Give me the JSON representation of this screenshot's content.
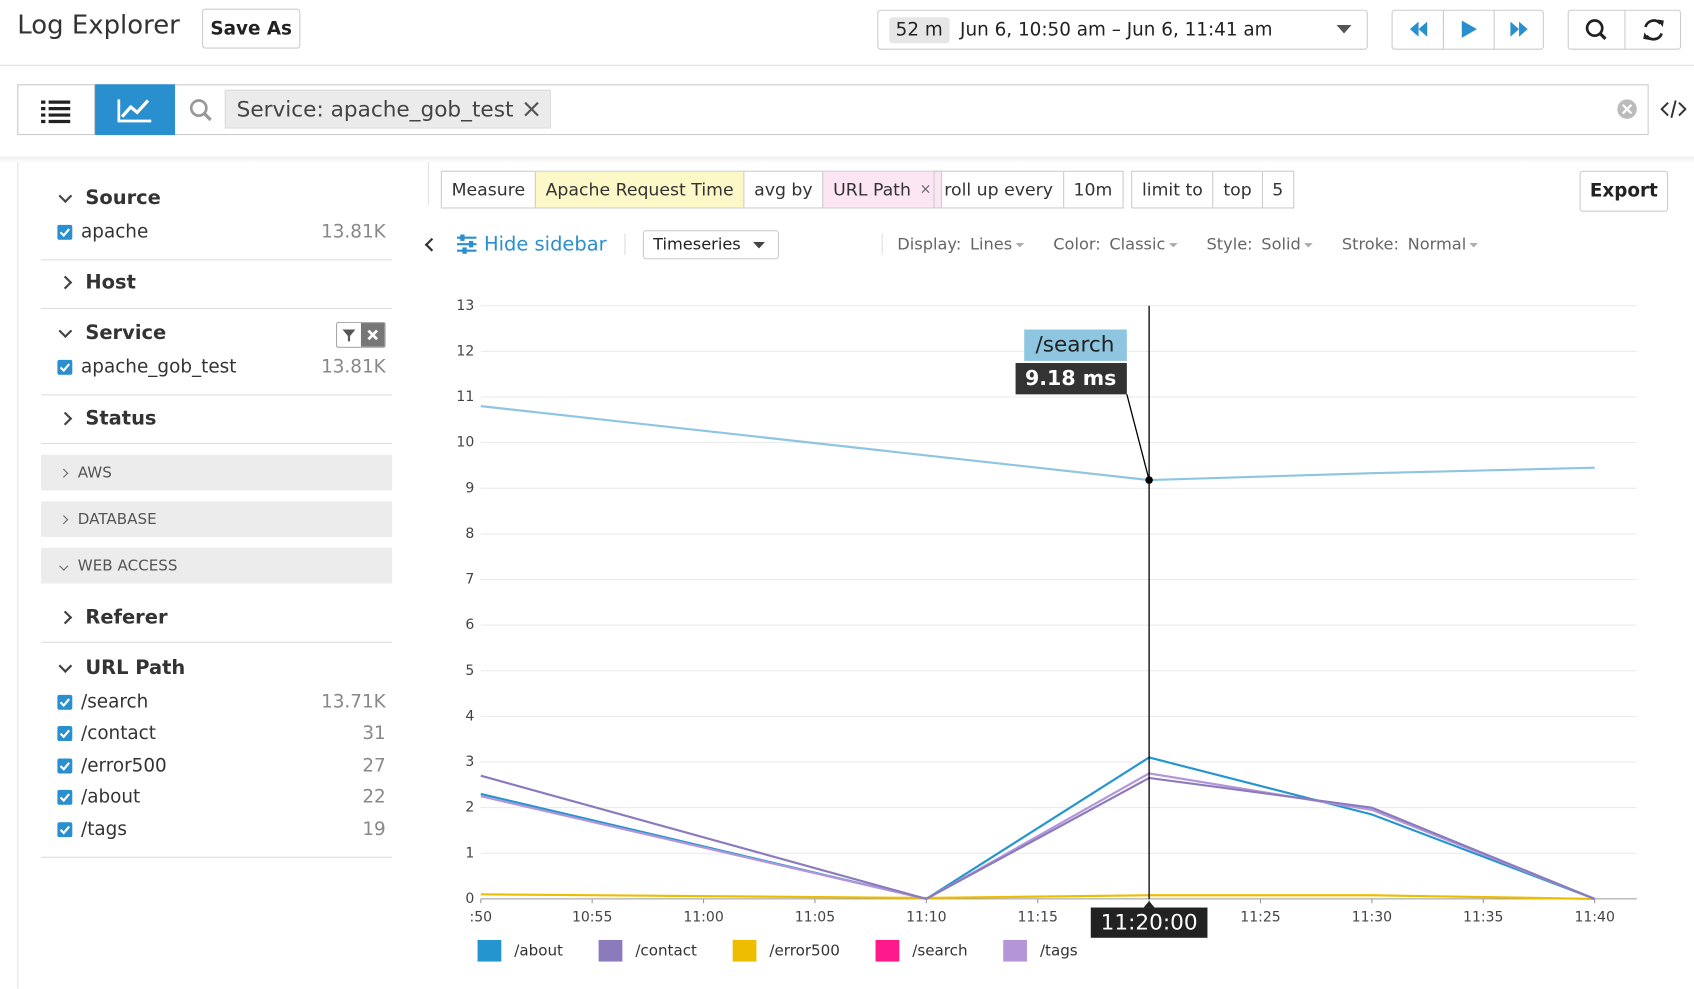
{
  "header": {
    "title": "Log Explorer",
    "save_as": "Save As",
    "time_badge": "52 m",
    "time_range": "Jun 6, 10:50 am – Jun 6, 11:41 am"
  },
  "search": {
    "query": "Service: apache_gob_test"
  },
  "sidebar": {
    "facets": [
      {
        "name": "Source",
        "expanded": true,
        "items": [
          {
            "label": "apache",
            "count": "13.81K"
          }
        ]
      },
      {
        "name": "Host",
        "expanded": false
      },
      {
        "name": "Service",
        "expanded": true,
        "filter_tool": true,
        "items": [
          {
            "label": "apache_gob_test",
            "count": "13.81K"
          }
        ]
      },
      {
        "name": "Status",
        "expanded": false
      },
      {
        "group": "AWS"
      },
      {
        "group": "DATABASE"
      },
      {
        "group": "WEB ACCESS",
        "expanded": true
      },
      {
        "name": "Referer",
        "expanded": false
      },
      {
        "name": "URL Path",
        "expanded": true,
        "items": [
          {
            "label": "/search",
            "count": "13.71K"
          },
          {
            "label": "/contact",
            "count": 31
          },
          {
            "label": "/error500",
            "count": 27
          },
          {
            "label": "/about",
            "count": 22
          },
          {
            "label": "/tags",
            "count": 19
          }
        ]
      }
    ]
  },
  "toolbar": {
    "query_groups": [
      [
        "Measure",
        "Apache Request Time",
        "avg by",
        "URL Path"
      ],
      [
        "roll up every",
        "10m"
      ],
      [
        "limit to",
        "top",
        "5"
      ]
    ],
    "export": "Export",
    "hide_sidebar": "Hide sidebar",
    "view": "Timeseries",
    "options": [
      {
        "label": "Display:",
        "value": "Lines"
      },
      {
        "label": "Color:",
        "value": "Classic"
      },
      {
        "label": "Style:",
        "value": "Solid"
      },
      {
        "label": "Stroke:",
        "value": "Normal"
      }
    ]
  },
  "chart_data": {
    "type": "line",
    "x": [
      "10:50",
      "11:10",
      "11:20",
      "11:30",
      "11:40"
    ],
    "xlim": [
      "10:50",
      "11:40"
    ],
    "xticks": [
      {
        "value": "10:50",
        "label": ":50"
      },
      "10:55",
      "11:00",
      "11:05",
      "11:10",
      "11:15",
      "11:20",
      "11:25",
      "11:30",
      "11:35",
      "11:40"
    ],
    "ylim": [
      0,
      13
    ],
    "yticks": [
      0,
      1,
      2,
      3,
      4,
      5,
      6,
      7,
      8,
      9,
      10,
      11,
      12,
      13
    ],
    "grid": true,
    "series": [
      {
        "name": "/about",
        "color": "#2595cf",
        "values": [
          2.3,
          0,
          3.1,
          1.85,
          0
        ]
      },
      {
        "name": "/contact",
        "color": "#8b7bbd",
        "values": [
          2.7,
          0,
          2.65,
          2.0,
          0
        ]
      },
      {
        "name": "/error500",
        "color": "#eebd00",
        "values": [
          0.1,
          0.02,
          0.08,
          0.08,
          0
        ]
      },
      {
        "name": "/search",
        "color": "#8ec5e0",
        "swatch_color": "#ff1a8c",
        "values": [
          10.8,
          9.72,
          9.18,
          9.33,
          9.45
        ]
      },
      {
        "name": "/tags",
        "color": "#b496d8",
        "values": [
          2.25,
          0,
          2.75,
          1.95,
          0
        ]
      }
    ],
    "tooltip": {
      "title": "/search",
      "text": "9.18 ms",
      "time": "11:20:00"
    }
  }
}
